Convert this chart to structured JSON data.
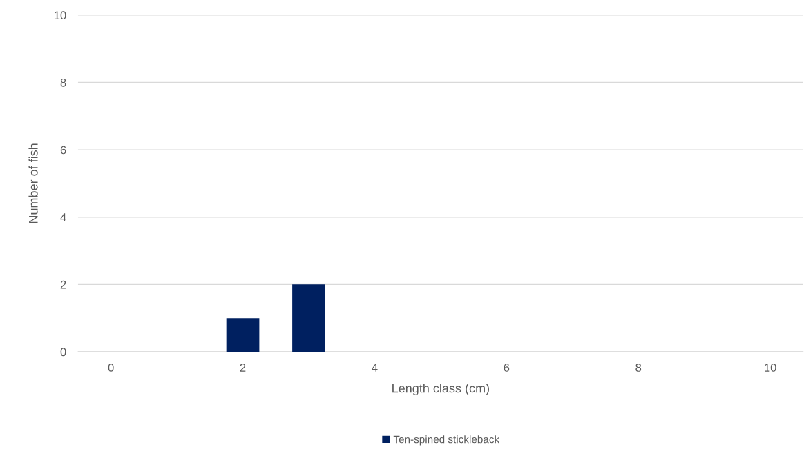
{
  "chart_data": {
    "type": "bar",
    "xlabel": "Length class (cm)",
    "ylabel": "Number of fish",
    "categories": [
      "0",
      null,
      "2",
      null,
      "4",
      null,
      "6",
      null,
      "8",
      null,
      "10"
    ],
    "series": [
      {
        "name": "Ten-spined stickleback",
        "color": "#002060",
        "values": [
          0,
          0,
          1,
          2,
          0,
          0,
          0,
          0,
          0,
          0,
          0
        ]
      }
    ],
    "ylim": [
      0,
      10
    ],
    "yticks": [
      0,
      2,
      4,
      6,
      8,
      10
    ],
    "grid": "y",
    "legend": "bottom"
  }
}
